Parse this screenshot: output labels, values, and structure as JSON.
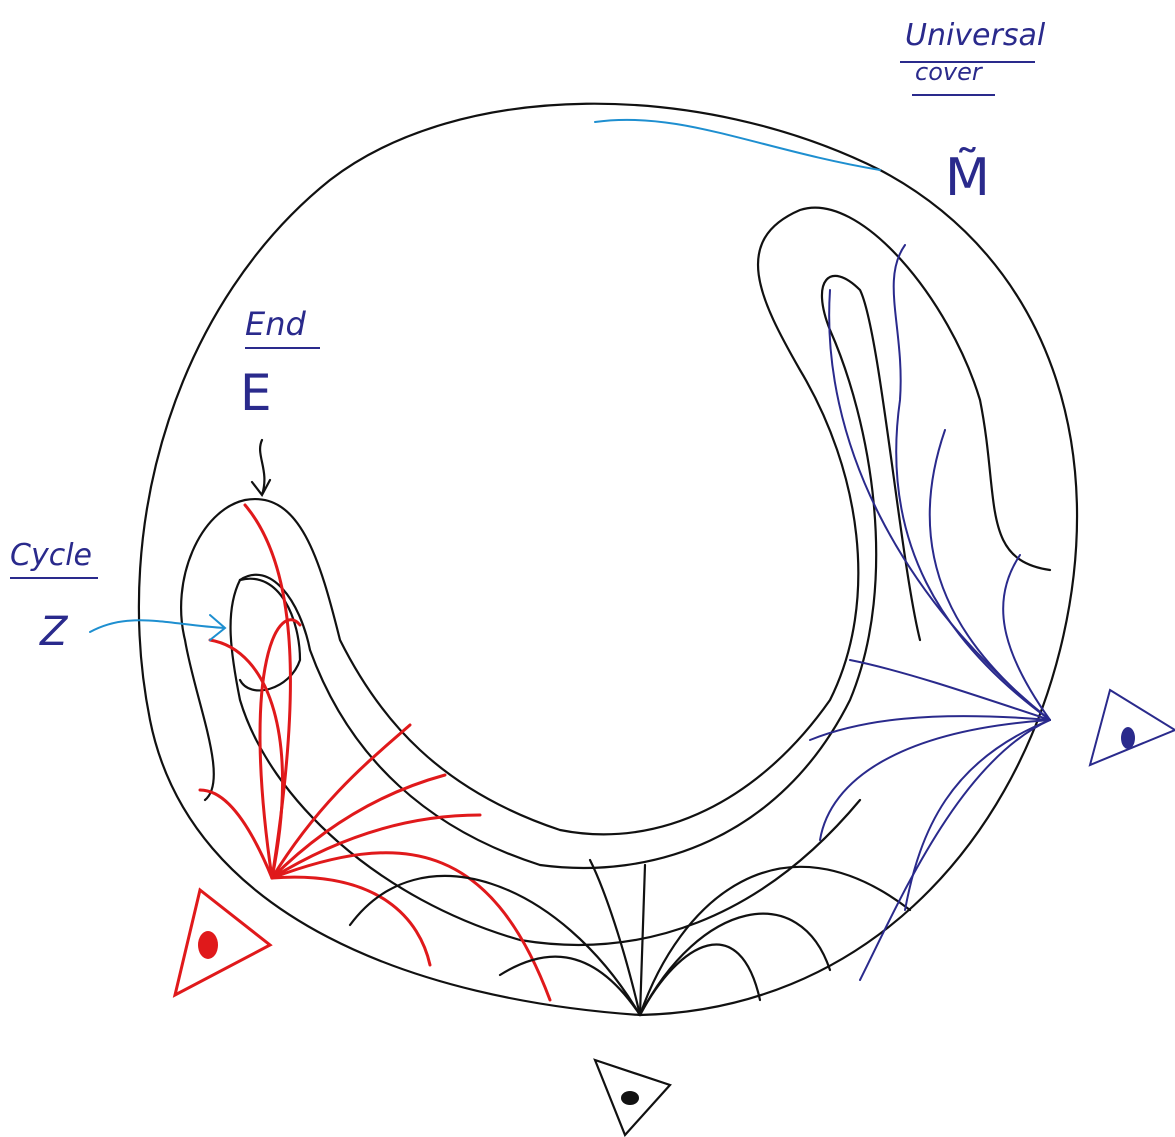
{
  "labels": {
    "universal_cover": [
      "Universal",
      "cover"
    ],
    "manifold": "M̃",
    "end": {
      "title": "End",
      "symbol": "E"
    },
    "cycle": {
      "title": "Cycle",
      "symbol": "Z"
    }
  }
}
